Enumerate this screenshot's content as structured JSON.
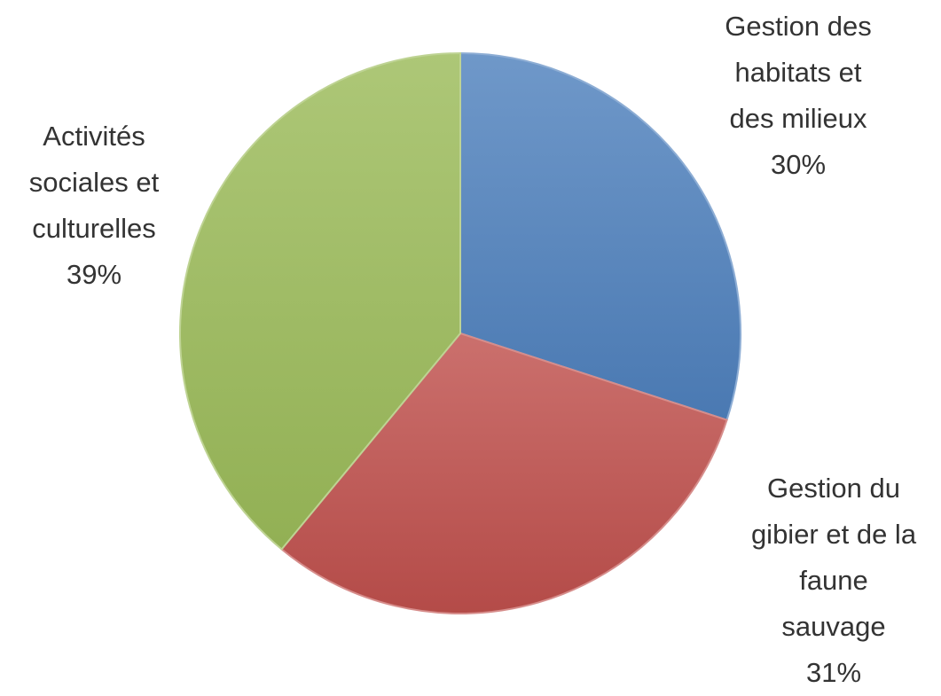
{
  "chart_data": {
    "type": "pie",
    "categories": [
      "Gestion des habitats et des milieux",
      "Gestion du gibier et de la faune sauvage",
      "Activités sociales et culturelles"
    ],
    "values": [
      30,
      31,
      39
    ],
    "value_labels": [
      "30%",
      "31%",
      "39%"
    ],
    "colors": [
      "#4f81bd",
      "#c0504d",
      "#9bbb59"
    ]
  }
}
